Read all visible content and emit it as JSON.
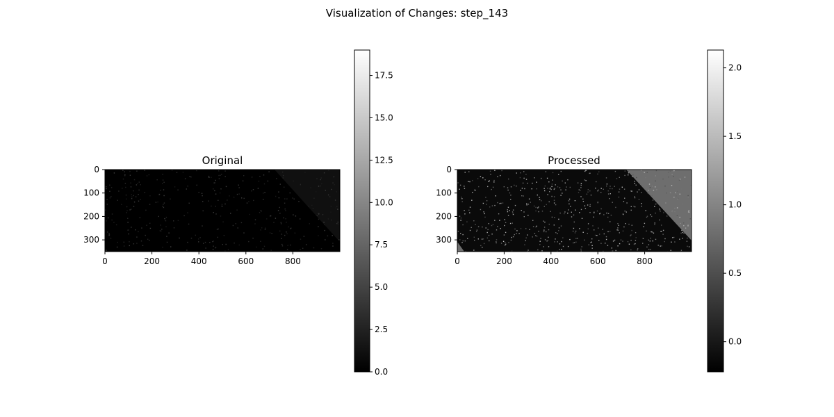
{
  "figure": {
    "title": "Visualization of Changes: step_143"
  },
  "chart_data": [
    {
      "type": "heatmap",
      "title": "Original",
      "colormap": "gray",
      "xlim": [
        0,
        1000
      ],
      "ylim": [
        350,
        0
      ],
      "y_inverted": true,
      "xticks": [
        0,
        200,
        400,
        600,
        800
      ],
      "yticks": [
        0,
        100,
        200,
        300
      ],
      "colorbar": {
        "range": [
          0,
          19.0
        ],
        "ticks": [
          "0.0",
          "2.5",
          "5.0",
          "7.5",
          "10.0",
          "12.5",
          "15.0",
          "17.5"
        ]
      }
    },
    {
      "type": "heatmap",
      "title": "Processed",
      "colormap": "gray",
      "xlim": [
        0,
        1000
      ],
      "ylim": [
        350,
        0
      ],
      "y_inverted": true,
      "xticks": [
        0,
        200,
        400,
        600,
        800
      ],
      "yticks": [
        0,
        100,
        200,
        300
      ],
      "colorbar": {
        "range": [
          -0.22,
          2.13
        ],
        "ticks": [
          "0.0",
          "0.5",
          "1.0",
          "1.5",
          "2.0"
        ]
      }
    }
  ]
}
